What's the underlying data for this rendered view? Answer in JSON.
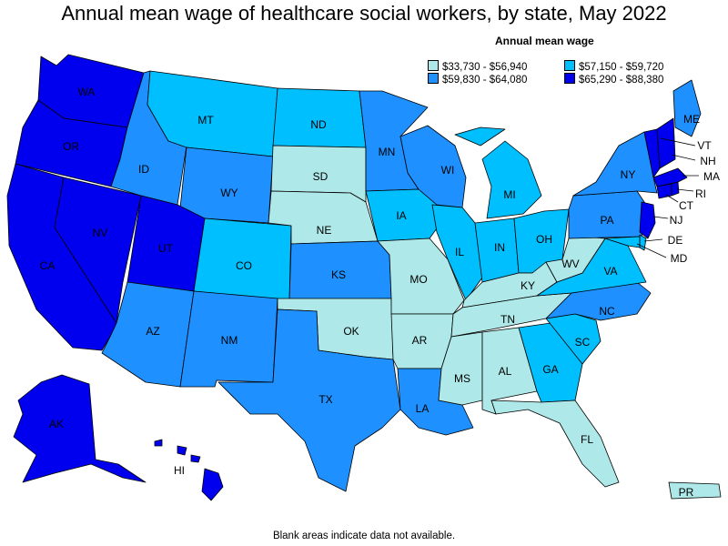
{
  "title": "Annual mean wage of healthcare social workers, by state, May 2022",
  "legend": {
    "title": "Annual mean wage",
    "bins": [
      {
        "label": "$33,730 - $56,940",
        "color": "#aee8e8"
      },
      {
        "label": "$57,150 - $59,720",
        "color": "#00bfff"
      },
      {
        "label": "$59,830 - $64,080",
        "color": "#1e90ff"
      },
      {
        "label": "$65,290 - $88,380",
        "color": "#0000ee"
      }
    ]
  },
  "footnote": "Blank areas indicate data not available.",
  "chart_data": {
    "type": "choropleth",
    "title": "Annual mean wage of healthcare social workers, by state, May 2022",
    "bins": [
      "$33,730 - $56,940",
      "$57,150 - $59,720",
      "$59,830 - $64,080",
      "$65,290 - $88,380"
    ],
    "states": {
      "WA": 3,
      "OR": 3,
      "CA": 3,
      "NV": 3,
      "UT": 3,
      "AK": 3,
      "HI": 3,
      "ID": 2,
      "MT": 1,
      "WY": 2,
      "CO": 1,
      "AZ": 2,
      "NM": 2,
      "ND": 1,
      "SD": 0,
      "NE": 0,
      "KS": 2,
      "OK": 0,
      "TX": 2,
      "MN": 2,
      "IA": 1,
      "MO": 0,
      "AR": 0,
      "LA": 2,
      "WI": 2,
      "IL": 1,
      "MI": 1,
      "IN": 1,
      "OH": 1,
      "KY": 0,
      "TN": 0,
      "MS": 0,
      "AL": 0,
      "GA": 1,
      "FL": 0,
      "SC": 1,
      "NC": 2,
      "VA": 1,
      "WV": 0,
      "PA": 2,
      "NY": 2,
      "ME": 2,
      "VT": 3,
      "NH": 3,
      "MA": 3,
      "RI": 3,
      "CT": 3,
      "NJ": 3,
      "DE": 1,
      "MD": 1,
      "PR": 0
    }
  }
}
